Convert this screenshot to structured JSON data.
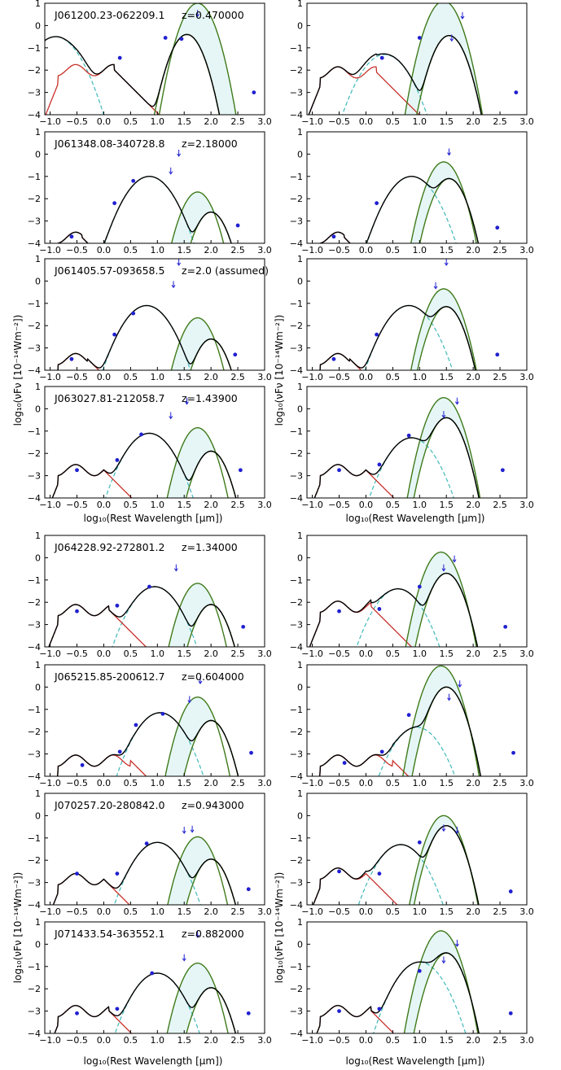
{
  "figure": {
    "ylabel": "log₁₀(νFν [10⁻¹⁴Wm⁻²])",
    "xlabel": "log₁₀(Rest Wavelength [μm])"
  },
  "colors": {
    "total": "#000000",
    "stellar": "#c8302a",
    "agn_torus": "#3fb8b8",
    "cold_dust": "#3e7a1a",
    "shade": "#e6f6f6",
    "points": "#2020d0"
  },
  "axes": {
    "xlim": [
      -1.1,
      3.0
    ],
    "ylim": [
      -4,
      1
    ],
    "xticks": [
      "−1.0",
      "−0.5",
      "0.0",
      "0.5",
      "1.0",
      "1.5",
      "2.0",
      "2.5",
      "3.0"
    ],
    "xtick_values": [
      -1.0,
      -0.5,
      0.0,
      0.5,
      1.0,
      1.5,
      2.0,
      2.5,
      3.0
    ],
    "yticks": [
      "−4",
      "−3",
      "−2",
      "−1",
      "0",
      "1"
    ],
    "ytick_values": [
      -4,
      -3,
      -2,
      -1,
      0,
      1
    ]
  },
  "chart_data": [
    {
      "type": "line",
      "title": "J061200.23-062209.1",
      "redshift": "z=0.470000",
      "panel": "left",
      "agn": {
        "peak": -0.9,
        "amp": -0.5
      },
      "stellar_amp": -2.0,
      "stellar_cut": 0.2,
      "cold": [
        {
          "peak": 1.75,
          "amp": 1.0
        },
        {
          "peak": 1.55,
          "amp": -0.4
        }
      ],
      "points": [
        [
          0.3,
          -1.45
        ],
        [
          1.15,
          -0.55
        ],
        [
          1.45,
          -0.6
        ],
        [
          2.8,
          -3.0
        ]
      ],
      "upper_limits": [
        [
          1.75,
          0.7
        ]
      ]
    },
    {
      "type": "line",
      "title": "",
      "redshift": "",
      "panel": "right",
      "agn": {
        "peak": 0.35,
        "amp": -1.3
      },
      "stellar_amp": -2.1,
      "stellar_cut": 0.2,
      "cold": [
        {
          "peak": 1.45,
          "amp": 1.1
        },
        {
          "peak": 1.55,
          "amp": -0.45
        }
      ],
      "points": [
        [
          0.3,
          -1.45
        ],
        [
          1.0,
          -0.55
        ],
        [
          2.8,
          -3.0
        ]
      ],
      "upper_limits": [
        [
          1.6,
          -0.4
        ],
        [
          1.8,
          0.6
        ]
      ]
    },
    {
      "type": "line",
      "title": "J061348.08-340728.8",
      "redshift": "z=2.18000",
      "panel": "left",
      "agn": {
        "peak": 0.85,
        "amp": -1.0
      },
      "stellar_amp": -3.75,
      "stellar_cut": -0.4,
      "cold": [
        {
          "peak": 1.75,
          "amp": -1.7
        },
        {
          "peak": 2.0,
          "amp": -2.6
        }
      ],
      "points": [
        [
          -0.6,
          -3.7
        ],
        [
          0.2,
          -2.2
        ],
        [
          0.55,
          -1.2
        ],
        [
          2.5,
          -3.2
        ]
      ],
      "upper_limits": [
        [
          1.25,
          -0.6
        ],
        [
          1.4,
          0.2
        ]
      ]
    },
    {
      "type": "line",
      "title": "",
      "redshift": "",
      "panel": "right",
      "agn": {
        "peak": 0.85,
        "amp": -1.0
      },
      "stellar_amp": -3.75,
      "stellar_cut": -0.4,
      "cold": [
        {
          "peak": 1.45,
          "amp": -0.35
        },
        {
          "peak": 1.55,
          "amp": -1.1
        }
      ],
      "points": [
        [
          -0.6,
          -3.7
        ],
        [
          0.2,
          -2.2
        ],
        [
          2.45,
          -3.3
        ]
      ],
      "upper_limits": [
        [
          1.55,
          0.25
        ]
      ]
    },
    {
      "type": "line",
      "title": "J061405.57-093658.5",
      "redshift": "z=2.0 (assumed)",
      "panel": "left",
      "agn": {
        "peak": 0.8,
        "amp": -1.1
      },
      "stellar_amp": -3.5,
      "stellar_cut": -0.3,
      "cold": [
        {
          "peak": 1.75,
          "amp": -1.65
        },
        {
          "peak": 2.0,
          "amp": -2.6
        }
      ],
      "points": [
        [
          -0.6,
          -3.5
        ],
        [
          0.2,
          -2.4
        ],
        [
          0.55,
          -1.45
        ],
        [
          2.45,
          -3.3
        ]
      ],
      "upper_limits": [
        [
          1.3,
          0.0
        ],
        [
          1.4,
          1.0
        ]
      ]
    },
    {
      "type": "line",
      "title": "",
      "redshift": "",
      "panel": "right",
      "agn": {
        "peak": 0.8,
        "amp": -1.1
      },
      "stellar_amp": -3.5,
      "stellar_cut": -0.3,
      "cold": [
        {
          "peak": 1.45,
          "amp": -0.35
        },
        {
          "peak": 1.5,
          "amp": -1.15
        }
      ],
      "points": [
        [
          -0.6,
          -3.5
        ],
        [
          0.2,
          -2.4
        ],
        [
          2.45,
          -3.3
        ]
      ],
      "upper_limits": [
        [
          1.3,
          -0.05
        ],
        [
          1.5,
          1.0
        ]
      ]
    },
    {
      "type": "line",
      "title": "J063027.81-212058.7",
      "redshift": "z=1.43900",
      "panel": "left",
      "agn": {
        "peak": 0.85,
        "amp": -1.1
      },
      "stellar_amp": -2.75,
      "stellar_cut": 0.0,
      "cold": [
        {
          "peak": 1.75,
          "amp": -0.85
        },
        {
          "peak": 2.0,
          "amp": -1.9
        }
      ],
      "points": [
        [
          -0.5,
          -2.75
        ],
        [
          0.25,
          -2.3
        ],
        [
          0.7,
          -1.15
        ],
        [
          2.55,
          -2.75
        ]
      ],
      "upper_limits": [
        [
          1.25,
          -0.15
        ],
        [
          1.55,
          0.5
        ]
      ]
    },
    {
      "type": "line",
      "title": "",
      "redshift": "",
      "panel": "right",
      "agn": {
        "peak": 0.85,
        "amp": -1.3
      },
      "stellar_amp": -2.75,
      "stellar_cut": 0.0,
      "cold": [
        {
          "peak": 1.45,
          "amp": 0.5
        },
        {
          "peak": 1.5,
          "amp": -0.4
        }
      ],
      "points": [
        [
          -0.5,
          -2.75
        ],
        [
          0.25,
          -2.5
        ],
        [
          0.8,
          -1.2
        ],
        [
          2.55,
          -2.75
        ]
      ],
      "upper_limits": [
        [
          1.45,
          -0.1
        ],
        [
          1.7,
          0.5
        ]
      ]
    },
    {
      "type": "line",
      "title": "J064228.92-272801.2",
      "redshift": "z=1.34000",
      "panel": "left",
      "agn": {
        "peak": 0.95,
        "amp": -1.3
      },
      "stellar_amp": -2.35,
      "stellar_cut": 0.1,
      "cold": [
        {
          "peak": 1.75,
          "amp": -1.15
        },
        {
          "peak": 2.0,
          "amp": -2.1
        }
      ],
      "points": [
        [
          -0.5,
          -2.4
        ],
        [
          0.25,
          -2.15
        ],
        [
          0.85,
          -1.3
        ],
        [
          2.6,
          -3.1
        ]
      ],
      "upper_limits": [
        [
          1.35,
          -0.3
        ]
      ]
    },
    {
      "type": "line",
      "title": "",
      "redshift": "",
      "panel": "right",
      "agn": {
        "peak": 0.6,
        "amp": -1.4
      },
      "stellar_amp": -2.2,
      "stellar_cut": 0.1,
      "cold": [
        {
          "peak": 1.4,
          "amp": 0.25
        },
        {
          "peak": 1.5,
          "amp": -0.7
        }
      ],
      "points": [
        [
          -0.5,
          -2.4
        ],
        [
          0.25,
          -2.3
        ],
        [
          1.0,
          -1.3
        ],
        [
          2.6,
          -3.1
        ]
      ],
      "upper_limits": [
        [
          1.45,
          -0.3
        ],
        [
          1.65,
          0.1
        ]
      ]
    },
    {
      "type": "line",
      "title": "J065215.85-200612.7",
      "redshift": "z=0.604000",
      "panel": "left",
      "agn": {
        "peak": 1.05,
        "amp": -1.15
      },
      "stellar_amp": -3.3,
      "stellar_cut": 0.5,
      "cold": [
        {
          "peak": 1.75,
          "amp": -0.45
        },
        {
          "peak": 2.0,
          "amp": -1.5
        }
      ],
      "points": [
        [
          -0.4,
          -3.5
        ],
        [
          0.3,
          -2.9
        ],
        [
          0.6,
          -1.7
        ],
        [
          1.1,
          -1.2
        ],
        [
          2.75,
          -2.95
        ]
      ],
      "upper_limits": [
        [
          1.6,
          -0.4
        ],
        [
          1.8,
          0.45
        ]
      ]
    },
    {
      "type": "line",
      "title": "",
      "redshift": "",
      "panel": "right",
      "agn": {
        "peak": 0.95,
        "amp": -1.8
      },
      "stellar_amp": -3.3,
      "stellar_cut": 0.5,
      "cold": [
        {
          "peak": 1.4,
          "amp": 0.95
        },
        {
          "peak": 1.5,
          "amp": 0.0
        }
      ],
      "points": [
        [
          -0.4,
          -3.4
        ],
        [
          0.3,
          -2.9
        ],
        [
          0.8,
          -1.25
        ],
        [
          2.75,
          -2.95
        ]
      ],
      "upper_limits": [
        [
          1.55,
          -0.3
        ],
        [
          1.75,
          0.3
        ]
      ]
    },
    {
      "type": "line",
      "title": "J070257.20-280842.0",
      "redshift": "z=0.943000",
      "panel": "left",
      "agn": {
        "peak": 1.0,
        "amp": -1.2
      },
      "stellar_amp": -2.85,
      "stellar_cut": 0.0,
      "cold": [
        {
          "peak": 1.75,
          "amp": -0.95
        },
        {
          "peak": 2.0,
          "amp": -1.95
        }
      ],
      "points": [
        [
          -0.5,
          -2.6
        ],
        [
          0.25,
          -2.6
        ],
        [
          0.8,
          -1.25
        ],
        [
          2.7,
          -3.3
        ]
      ],
      "upper_limits": [
        [
          1.5,
          -0.5
        ],
        [
          1.65,
          -0.45
        ]
      ]
    },
    {
      "type": "line",
      "title": "",
      "redshift": "",
      "panel": "right",
      "agn": {
        "peak": 0.65,
        "amp": -1.3
      },
      "stellar_amp": -2.6,
      "stellar_cut": 0.0,
      "cold": [
        {
          "peak": 1.45,
          "amp": 0.0
        },
        {
          "peak": 1.5,
          "amp": -0.45
        }
      ],
      "points": [
        [
          -0.5,
          -2.5
        ],
        [
          0.25,
          -2.6
        ],
        [
          1.0,
          -1.2
        ],
        [
          2.7,
          -3.4
        ]
      ],
      "upper_limits": [
        [
          1.45,
          -0.4
        ],
        [
          1.7,
          -0.5
        ]
      ]
    },
    {
      "type": "line",
      "title": "J071433.54-363552.1",
      "redshift": "z=0.882000",
      "panel": "left",
      "agn": {
        "peak": 1.0,
        "amp": -1.3
      },
      "stellar_amp": -3.0,
      "stellar_cut": 0.1,
      "cold": [
        {
          "peak": 1.75,
          "amp": -0.85
        },
        {
          "peak": 2.0,
          "amp": -1.95
        }
      ],
      "points": [
        [
          -0.5,
          -3.1
        ],
        [
          0.25,
          -2.9
        ],
        [
          0.9,
          -1.3
        ],
        [
          2.7,
          -3.1
        ]
      ],
      "upper_limits": [
        [
          1.5,
          -0.45
        ],
        [
          1.75,
          0.6
        ]
      ]
    },
    {
      "type": "line",
      "title": "",
      "redshift": "",
      "panel": "right",
      "agn": {
        "peak": 1.0,
        "amp": -0.8
      },
      "stellar_amp": -3.0,
      "stellar_cut": 0.1,
      "cold": [
        {
          "peak": 1.4,
          "amp": 0.6
        },
        {
          "peak": 1.5,
          "amp": -0.4
        }
      ],
      "points": [
        [
          -0.5,
          -3.0
        ],
        [
          0.25,
          -2.9
        ],
        [
          1.0,
          -1.2
        ],
        [
          2.7,
          -3.1
        ]
      ],
      "upper_limits": [
        [
          1.45,
          -0.55
        ],
        [
          1.7,
          0.2
        ]
      ]
    }
  ]
}
